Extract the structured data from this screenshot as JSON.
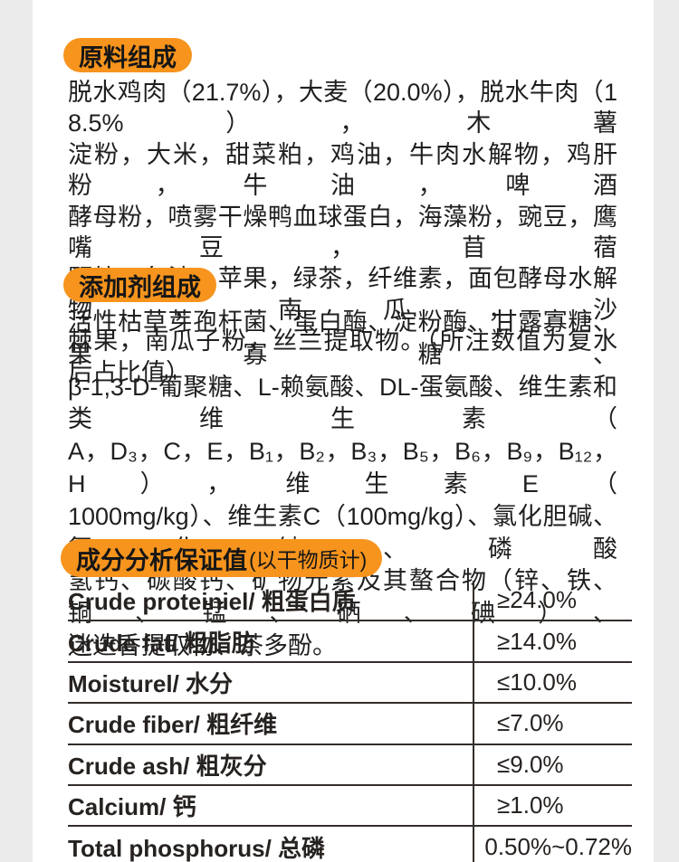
{
  "colors": {
    "accent_orange": "#f7941d",
    "side_gutter_gray": "#ebebeb",
    "content_white": "#ffffff",
    "text_black": "#1f1f1f",
    "table_line_dark": "#332e2b"
  },
  "ingredients": {
    "badge": "原料组成",
    "lines": [
      "脱水鸡肉（21.7%），大麦（20.0%），脱水牛肉（18.5%），木薯",
      "淀粉，大米，甜菜粕，鸡油，牛肉水解物，鸡肝粉，牛油，啤酒",
      "酵母粉，喷雾干燥鸭血球蛋白，海藻粉，豌豆，鹰嘴豆，苜蓿",
      "颗粒，鱼油，苹果，绿茶，纤维素，面包酵母水解物，南瓜，沙",
      "棘果，南瓜子粉，丝兰提取物。（所注数值为复水后占比值）"
    ]
  },
  "additives": {
    "badge": "添加剂组成",
    "lines": [
      "活性枯草芽孢杆菌、蛋白酶、淀粉酶、甘露寡糖、果寡糖、",
      "β-1,3-D-葡聚糖、L-赖氨酸、DL-蛋氨酸、维生素和类维生素（",
      "A，D₃，C，E，B₁，B₂，B₃，B₅，B₆，B₉，B₁₂，H），维生素E（",
      "1000mg/kg）、维生素C（100mg/kg）、氯化胆碱、氯化钠、磷酸",
      "氢钙、碳酸钙、矿物元素及其螯合物（锌、铁、铜、锰、硒、碘）、",
      "迷迭香提取物、茶多酚。"
    ]
  },
  "analysis": {
    "badge": "成分分析保证值",
    "badge_sub": "(以干物质计)",
    "rows": [
      {
        "label": "Crude proteiniel/ 粗蛋白质",
        "value": "≥24.0%"
      },
      {
        "label": "Crude fat/ 粗脂肪",
        "value": "≥14.0%"
      },
      {
        "label": "Moisturel/ 水分",
        "value": "≤10.0%"
      },
      {
        "label": "Crude fiber/ 粗纤维",
        "value": "≤7.0%"
      },
      {
        "label": "Crude ash/ 粗灰分",
        "value": "≤9.0%"
      },
      {
        "label": "Calcium/ 钙",
        "value": "≥1.0%"
      },
      {
        "label": "Total phosphorus/ 总磷",
        "value": "0.50%~0.72%"
      }
    ]
  }
}
